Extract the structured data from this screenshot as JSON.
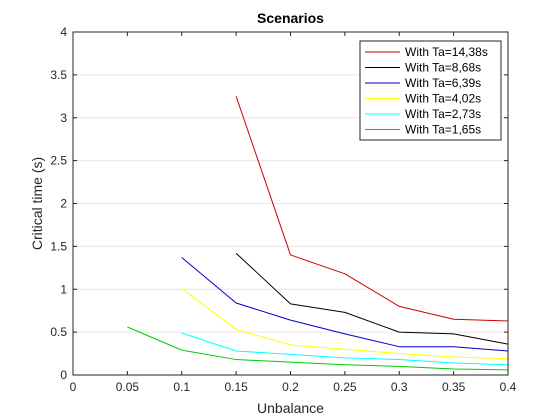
{
  "chart_data": {
    "type": "line",
    "title": "Scenarios",
    "xlabel": "Unbalance",
    "ylabel": "Critical time (s)",
    "xlim": [
      0,
      0.4
    ],
    "ylim": [
      0,
      4
    ],
    "xticks": [
      0,
      0.05,
      0.1,
      0.15,
      0.2,
      0.25,
      0.3,
      0.35,
      0.4
    ],
    "xtick_labels": [
      "0",
      "0.05",
      "0.1",
      "0.15",
      "0.2",
      "0.25",
      "0.3",
      "0.35",
      "0.4"
    ],
    "yticks": [
      0,
      0.5,
      1,
      1.5,
      2,
      2.5,
      3,
      3.5,
      4
    ],
    "ytick_labels": [
      "0",
      "0.5",
      "1",
      "1.5",
      "2",
      "2.5",
      "3",
      "3.5",
      "4"
    ],
    "grid": "horizontal",
    "legend_position": "top-right",
    "series": [
      {
        "name": "With Ta=14,38s",
        "color": "#cc0000",
        "x": [
          0.15,
          0.2,
          0.25,
          0.3,
          0.35,
          0.4
        ],
        "y": [
          3.25,
          1.4,
          1.18,
          0.8,
          0.65,
          0.63
        ]
      },
      {
        "name": "With Ta=8,68s",
        "color": "#000000",
        "x": [
          0.15,
          0.2,
          0.25,
          0.3,
          0.35,
          0.4
        ],
        "y": [
          1.42,
          0.83,
          0.73,
          0.5,
          0.48,
          0.36
        ]
      },
      {
        "name": "With Ta=6,39s",
        "color": "#0000cc",
        "x": [
          0.1,
          0.15,
          0.2,
          0.25,
          0.3,
          0.35,
          0.4
        ],
        "y": [
          1.37,
          0.84,
          0.64,
          0.48,
          0.33,
          0.33,
          0.28
        ]
      },
      {
        "name": "With Ta=4,02s",
        "color": "#ffff00",
        "x": [
          0.1,
          0.15,
          0.2,
          0.25,
          0.3,
          0.35,
          0.4
        ],
        "y": [
          1.01,
          0.53,
          0.35,
          0.3,
          0.25,
          0.21,
          0.19
        ]
      },
      {
        "name": "With Ta=2,73s",
        "color": "#00ffff",
        "x": [
          0.1,
          0.15,
          0.2,
          0.25,
          0.3,
          0.35,
          0.4
        ],
        "y": [
          0.49,
          0.28,
          0.24,
          0.2,
          0.18,
          0.14,
          0.12
        ]
      },
      {
        "name": "With Ta=1,65s",
        "color": "#00cc00",
        "x": [
          0.05,
          0.1,
          0.15,
          0.2,
          0.25,
          0.3,
          0.35,
          0.4
        ],
        "y": [
          0.56,
          0.29,
          0.18,
          0.15,
          0.12,
          0.1,
          0.07,
          0.06
        ]
      }
    ]
  }
}
